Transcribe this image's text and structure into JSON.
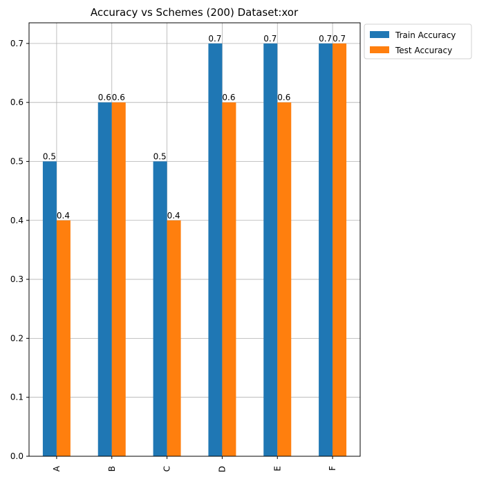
{
  "chart_data": {
    "type": "bar",
    "title": "Accuracy vs Schemes (200) Dataset:xor",
    "xlabel": "",
    "ylabel": "",
    "categories": [
      "A",
      "B",
      "C",
      "D",
      "E",
      "F"
    ],
    "series": [
      {
        "name": "Train Accuracy",
        "color": "#1f77b4",
        "values": [
          0.5,
          0.6,
          0.5,
          0.7,
          0.7,
          0.7
        ]
      },
      {
        "name": "Test Accuracy",
        "color": "#ff7f0e",
        "values": [
          0.4,
          0.6,
          0.4,
          0.6,
          0.6,
          0.7
        ]
      }
    ],
    "ylim": [
      0,
      0.735
    ],
    "yticks": [
      0.0,
      0.1,
      0.2,
      0.3,
      0.4,
      0.5,
      0.6,
      0.7
    ],
    "ytick_labels": [
      "0.0",
      "0.1",
      "0.2",
      "0.3",
      "0.4",
      "0.5",
      "0.6",
      "0.7"
    ],
    "data_labels": [
      [
        "0.5",
        "0.6",
        "0.5",
        "0.7",
        "0.7",
        "0.7"
      ],
      [
        "0.4",
        "0.6",
        "0.4",
        "0.6",
        "0.6",
        "0.7"
      ]
    ],
    "grid": true,
    "legend_position": "outside-top-right"
  }
}
